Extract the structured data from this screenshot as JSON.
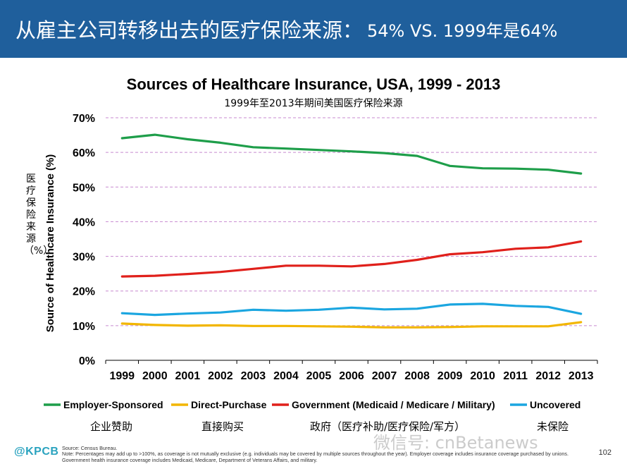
{
  "header": {
    "title_main": "从雇主公司转移出去的医疗保险来源：",
    "title_sub": "54% VS. 1999年是64%"
  },
  "colors": {
    "header_bg": "#1f5f9c",
    "employer": "#1e9e4a",
    "direct": "#f2b600",
    "government": "#e0201b",
    "uncovered": "#1ba6e0",
    "gridline": "#c88ad0"
  },
  "chart_data": {
    "type": "line",
    "title": "Sources of Healthcare Insurance, USA, 1999 - 2013",
    "subtitle": "1999年至2013年期间美国医疗保险来源",
    "ylabel": "Source of Healthcare Insurance (%)",
    "ylabel_cn": "医疗保险来源（%）",
    "xlabel": "",
    "ylim": [
      0,
      70
    ],
    "yticks": [
      "0%",
      "10%",
      "20%",
      "30%",
      "40%",
      "50%",
      "60%",
      "70%"
    ],
    "categories": [
      "1999",
      "2000",
      "2001",
      "2002",
      "2003",
      "2004",
      "2005",
      "2006",
      "2007",
      "2008",
      "2009",
      "2010",
      "2011",
      "2012",
      "2013"
    ],
    "series": [
      {
        "name": "Employer-Sponsored",
        "name_cn": "企业赞助",
        "color": "#1e9e4a",
        "values": [
          64.1,
          65.1,
          63.8,
          62.8,
          61.5,
          61.1,
          60.7,
          60.3,
          59.8,
          59.0,
          56.1,
          55.4,
          55.3,
          55.0,
          53.9
        ]
      },
      {
        "name": "Direct-Purchase",
        "name_cn": "直接购买",
        "color": "#f2b600",
        "values": [
          10.6,
          10.2,
          10.0,
          10.1,
          9.9,
          9.9,
          9.8,
          9.7,
          9.5,
          9.5,
          9.6,
          9.8,
          9.8,
          9.8,
          11.0
        ]
      },
      {
        "name": "Government (Medicaid / Medicare / Military)",
        "name_cn": "政府（医疗补助/医疗保险/军方）",
        "color": "#e0201b",
        "values": [
          24.2,
          24.4,
          24.9,
          25.5,
          26.4,
          27.3,
          27.3,
          27.1,
          27.8,
          29.0,
          30.6,
          31.2,
          32.2,
          32.6,
          34.3
        ]
      },
      {
        "name": "Uncovered",
        "name_cn": "未保险",
        "color": "#1ba6e0",
        "values": [
          13.6,
          13.1,
          13.5,
          13.8,
          14.6,
          14.3,
          14.6,
          15.2,
          14.7,
          14.9,
          16.1,
          16.3,
          15.7,
          15.4,
          13.4
        ]
      }
    ]
  },
  "footer": {
    "logo": "@KPCB",
    "source": "Source: Census Bureau.",
    "note": "Note: Percentages may add up to >100%, as coverage is not mutually exclusive (e.g. individuals may be covered by multiple sources throughout the year). Employer coverage includes insurance coverage purchased by unions. Government health insurance coverage includes Medicaid, Medicare, Department of Veterans Affairs, and military.",
    "page": "102",
    "watermark": "微信号: cnBetanews"
  }
}
